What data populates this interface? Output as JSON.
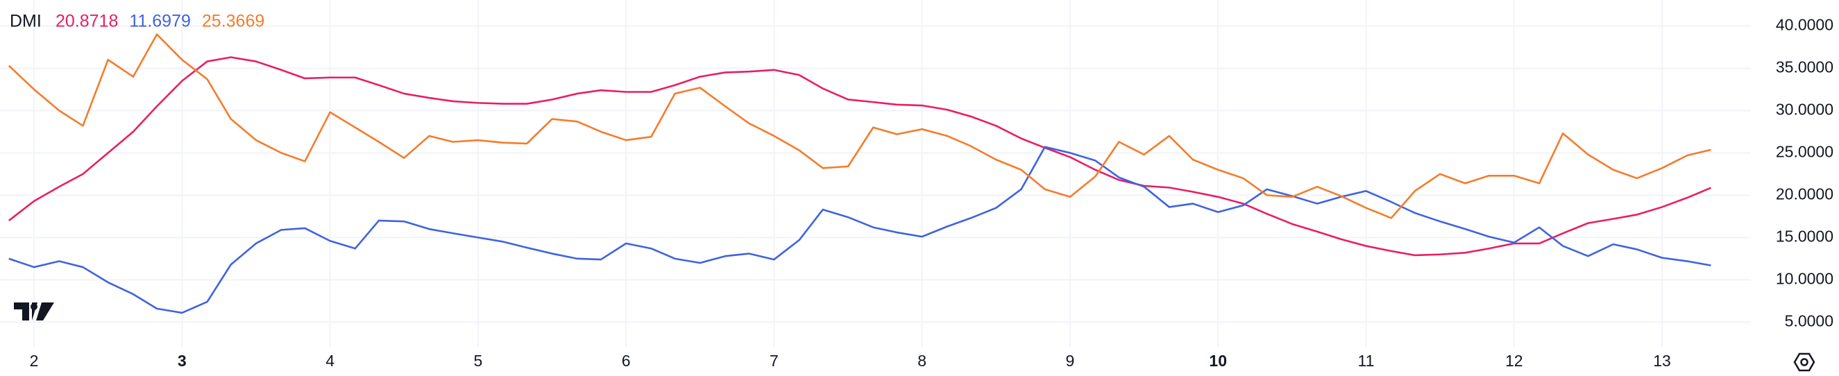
{
  "chart_data": {
    "type": "line",
    "title": "DMI",
    "x": [
      1.83,
      2.0,
      2.17,
      2.33,
      2.5,
      2.67,
      2.83,
      3.0,
      3.17,
      3.33,
      3.5,
      3.67,
      3.83,
      4.0,
      4.17,
      4.33,
      4.5,
      4.67,
      4.83,
      5.0,
      5.17,
      5.33,
      5.5,
      5.67,
      5.83,
      6.0,
      6.17,
      6.33,
      6.5,
      6.67,
      6.83,
      7.0,
      7.17,
      7.33,
      7.5,
      7.67,
      7.83,
      8.0,
      8.17,
      8.33,
      8.5,
      8.67,
      8.83,
      9.0,
      9.17,
      9.33,
      9.5,
      9.67,
      9.83,
      10.0,
      10.17,
      10.33,
      10.5,
      10.67,
      10.83,
      11.0,
      11.17,
      11.33,
      11.5,
      11.67,
      11.83,
      12.0,
      12.17,
      12.33,
      12.5,
      12.67,
      12.83,
      13.0,
      13.17,
      13.33
    ],
    "series": [
      {
        "color": "#e91e63",
        "values": [
          17,
          19.3,
          21,
          22.5,
          25,
          27.5,
          30.5,
          33.5,
          35.8,
          36.3,
          35.8,
          34.8,
          33.8,
          33.9,
          33.9,
          33,
          32,
          31.5,
          31.1,
          30.9,
          30.8,
          30.8,
          31.3,
          32,
          32.4,
          32.2,
          32.2,
          33,
          34,
          34.5,
          34.6,
          34.8,
          34.2,
          32.6,
          31.3,
          31,
          30.7,
          30.6,
          30.1,
          29.3,
          28.2,
          26.7,
          25.6,
          24.5,
          23,
          21.8,
          21.1,
          20.9,
          20.4,
          19.8,
          19,
          17.8,
          16.6,
          15.7,
          14.8,
          14,
          13.4,
          12.9,
          13,
          13.2,
          13.7,
          14.3,
          14.3,
          15.5,
          16.7,
          17.2,
          17.7,
          18.6,
          19.7,
          20.8718
        ]
      },
      {
        "color": "#3f63e0",
        "values": [
          12.5,
          11.5,
          12.2,
          11.5,
          9.7,
          8.3,
          6.6,
          6.1,
          7.4,
          11.8,
          14.3,
          15.9,
          16.1,
          14.6,
          13.7,
          17,
          16.9,
          16,
          15.5,
          15,
          14.5,
          13.8,
          13.1,
          12.5,
          12.4,
          14.3,
          13.7,
          12.5,
          12,
          12.8,
          13.1,
          12.4,
          14.7,
          18.3,
          17.4,
          16.2,
          15.6,
          15.1,
          16.3,
          17.3,
          18.5,
          20.7,
          25.7,
          25,
          24.1,
          22.1,
          21,
          18.6,
          19,
          18,
          18.8,
          20.7,
          19.9,
          19,
          19.8,
          20.5,
          19.2,
          17.9,
          16.9,
          16,
          15.1,
          14.4,
          16.2,
          14,
          12.8,
          14.2,
          13.6,
          12.6,
          12.2,
          11.6979
        ]
      },
      {
        "color": "#f57c2b",
        "values": [
          35.3,
          32.5,
          30,
          28.2,
          36,
          34,
          39,
          36,
          33.7,
          29,
          26.5,
          25,
          24,
          29.8,
          28,
          26.3,
          24.4,
          27,
          26.3,
          26.5,
          26.2,
          26.1,
          29,
          28.7,
          27.5,
          26.5,
          26.9,
          32,
          32.7,
          30.5,
          28.5,
          27,
          25.3,
          23.2,
          23.4,
          28,
          27.2,
          27.8,
          27,
          25.8,
          24.2,
          23,
          20.7,
          19.8,
          22.2,
          26.3,
          24.8,
          27,
          24.2,
          23,
          22,
          20,
          19.8,
          21,
          19.9,
          18.5,
          17.3,
          20.5,
          22.5,
          21.4,
          22.3,
          22.3,
          21.4,
          27.3,
          24.8,
          23,
          22,
          23.2,
          24.7,
          25.3669
        ]
      }
    ],
    "xlim": [
      1.77,
      13.6
    ],
    "ylim": [
      2.08,
      43.06
    ],
    "xticks": [
      2,
      3,
      4,
      5,
      6,
      7,
      8,
      9,
      10,
      11,
      12,
      13
    ],
    "xticks_bold": [
      3,
      10
    ],
    "yticks": [
      {
        "value": 5,
        "label": "5.0000"
      },
      {
        "value": 10,
        "label": "10.0000"
      },
      {
        "value": 15,
        "label": "15.0000"
      },
      {
        "value": 20,
        "label": "20.0000"
      },
      {
        "value": 25,
        "label": "25.0000"
      },
      {
        "value": 30,
        "label": "30.0000"
      },
      {
        "value": 35,
        "label": "35.0000"
      },
      {
        "value": 40,
        "label": "40.0000"
      }
    ],
    "grid": true
  }
}
